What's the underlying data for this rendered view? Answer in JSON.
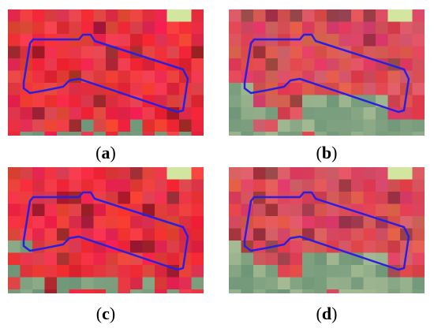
{
  "panels": [
    {
      "caption": [
        "(",
        "a",
        ")"
      ]
    },
    {
      "caption": [
        "(",
        "b",
        ")"
      ]
    },
    {
      "caption": [
        "(",
        "c",
        ")"
      ]
    },
    {
      "caption": [
        "(",
        "d",
        ")"
      ]
    }
  ]
}
